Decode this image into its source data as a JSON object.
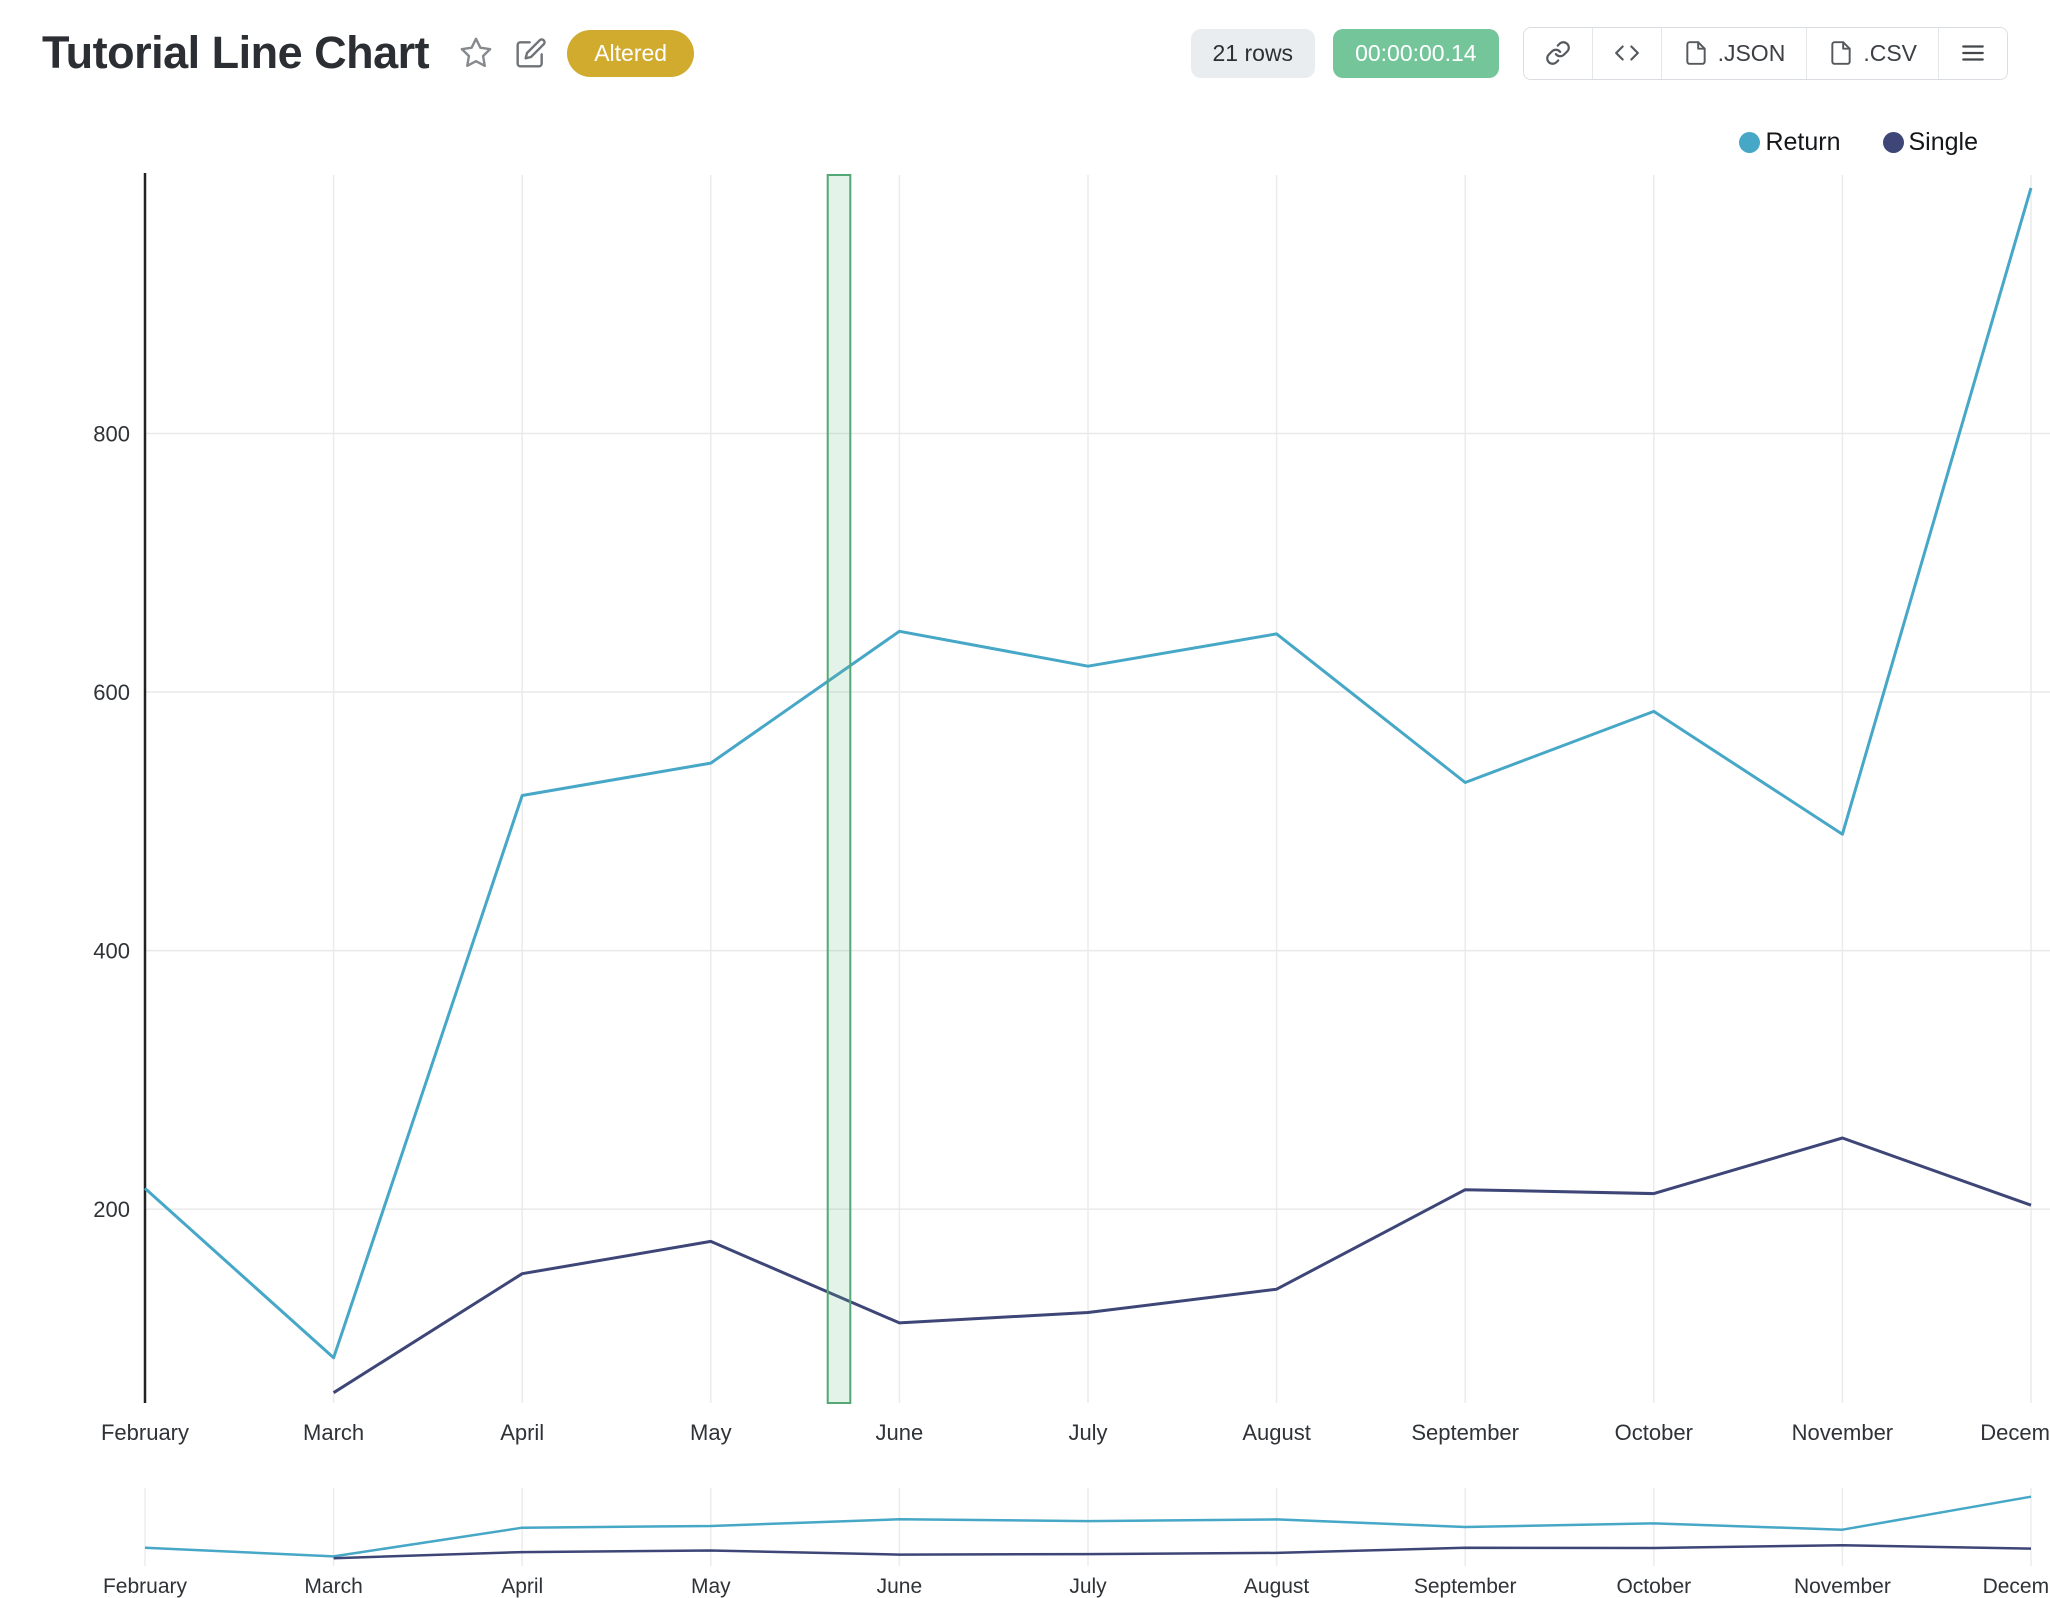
{
  "header": {
    "title": "Tutorial Line Chart",
    "altered_badge": "Altered",
    "rows_badge": "21 rows",
    "time_badge": "00:00:00.14",
    "export_json": ".JSON",
    "export_csv": ".CSV"
  },
  "colors": {
    "return_series": "#47a7c7",
    "single_series": "#3d4677",
    "altered_badge_bg": "#d0ab2e",
    "time_badge_bg": "#74c69a",
    "selection_band": "#53a873"
  },
  "legend": {
    "items": [
      {
        "label": "Return",
        "color": "#47a7c7"
      },
      {
        "label": "Single",
        "color": "#3d4677"
      }
    ]
  },
  "chart_data": {
    "type": "line",
    "title": "Tutorial Line Chart",
    "x": [
      "February",
      "March",
      "April",
      "May",
      "June",
      "July",
      "August",
      "September",
      "October",
      "November",
      "December"
    ],
    "series": [
      {
        "name": "Return",
        "color": "#47a7c7",
        "values": [
          216,
          85,
          520,
          545,
          647,
          620,
          645,
          530,
          585,
          490,
          990
        ]
      },
      {
        "name": "Single",
        "color": "#3d4677",
        "values": [
          null,
          58,
          150,
          175,
          112,
          120,
          138,
          215,
          212,
          255,
          203
        ]
      }
    ],
    "xlabel": "",
    "ylabel": "",
    "ylim": [
      50,
      1000
    ],
    "yticks": [
      200,
      400,
      600,
      800
    ],
    "grid": true,
    "legend_position": "top-right",
    "selection_band": {
      "from_x_index": 3.62,
      "to_x_index": 3.74
    },
    "overview": {
      "ylim": [
        0,
        1000
      ]
    }
  }
}
